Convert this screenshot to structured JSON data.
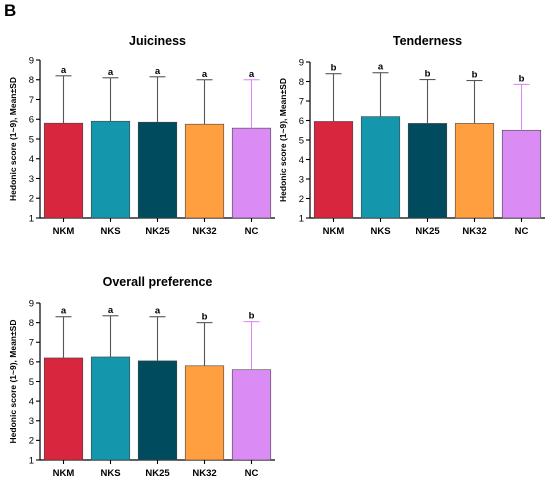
{
  "panel_label": "B",
  "chart_data": [
    {
      "type": "bar",
      "title": "Juiciness",
      "xlabel": "",
      "ylabel": "Hedonic score (1~9), Mean±SD",
      "ylim": [
        1,
        9
      ],
      "yticks": [
        "1",
        "2",
        "3",
        "4",
        "5",
        "6",
        "7",
        "8",
        "9"
      ],
      "categories": [
        "NKM",
        "NKS",
        "NK25",
        "NK32",
        "NC"
      ],
      "values": [
        5.8,
        5.9,
        5.85,
        5.75,
        5.55
      ],
      "error_upper": [
        8.2,
        8.1,
        8.15,
        8.0,
        8.0
      ],
      "significance": [
        "a",
        "a",
        "a",
        "a",
        "a"
      ],
      "colors": [
        "#d7263d",
        "#1497ad",
        "#004c5e",
        "#ff9f3f",
        "#da8cf4"
      ]
    },
    {
      "type": "bar",
      "title": "Tenderness",
      "xlabel": "",
      "ylabel": "Hedonic score (1~9), Mean±SD",
      "ylim": [
        1,
        9
      ],
      "yticks": [
        "1",
        "2",
        "3",
        "4",
        "5",
        "6",
        "7",
        "8",
        "9"
      ],
      "categories": [
        "NKM",
        "NKS",
        "NK25",
        "NK32",
        "NC"
      ],
      "values": [
        5.95,
        6.2,
        5.85,
        5.85,
        5.5
      ],
      "error_upper": [
        8.4,
        8.45,
        8.1,
        8.05,
        7.85
      ],
      "significance": [
        "b",
        "a",
        "b",
        "b",
        "b"
      ],
      "colors": [
        "#d7263d",
        "#1497ad",
        "#004c5e",
        "#ff9f3f",
        "#da8cf4"
      ]
    },
    {
      "type": "bar",
      "title": "Overall preference",
      "xlabel": "",
      "ylabel": "Hedonic score (1~9), Mean±SD",
      "ylim": [
        1,
        9
      ],
      "yticks": [
        "1",
        "2",
        "3",
        "4",
        "5",
        "6",
        "7",
        "8",
        "9"
      ],
      "categories": [
        "NKM",
        "NKS",
        "NK25",
        "NK32",
        "NC"
      ],
      "values": [
        6.2,
        6.25,
        6.05,
        5.8,
        5.6
      ],
      "error_upper": [
        8.3,
        8.35,
        8.3,
        8.0,
        8.05
      ],
      "significance": [
        "a",
        "a",
        "a",
        "b",
        "b"
      ],
      "colors": [
        "#d7263d",
        "#1497ad",
        "#004c5e",
        "#ff9f3f",
        "#da8cf4"
      ]
    }
  ]
}
